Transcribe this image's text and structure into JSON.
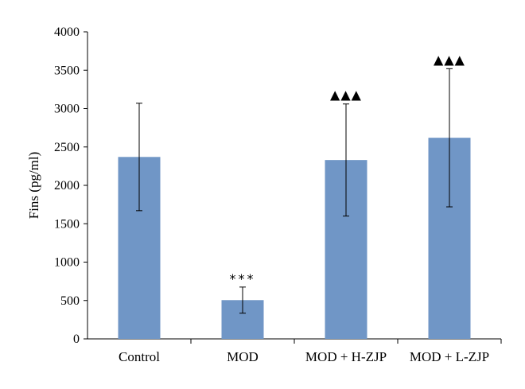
{
  "chart_data": {
    "type": "bar",
    "ylabel": "Fins (pg/ml)",
    "xlabel": "",
    "categories": [
      "Control",
      "MOD",
      "MOD + H-ZJP",
      "MOD + L-ZJP"
    ],
    "values": [
      2370,
      505,
      2330,
      2620
    ],
    "error": [
      700,
      170,
      730,
      900
    ],
    "annotations": [
      "",
      "***",
      "▲▲▲",
      "▲▲▲"
    ],
    "ylim": [
      0,
      4000
    ],
    "yticks": [
      0,
      500,
      1000,
      1500,
      2000,
      2500,
      3000,
      3500,
      4000
    ],
    "grid": false,
    "legend": "none",
    "bar_color": "#7096c6"
  }
}
